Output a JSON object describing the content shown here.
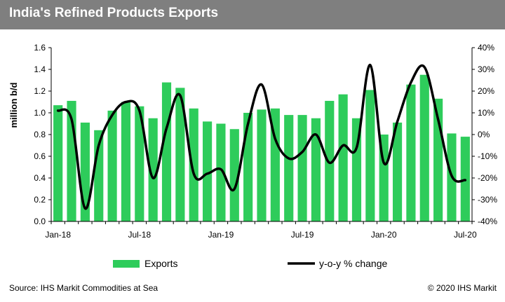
{
  "title": "India's Refined Products Exports",
  "source": "Source: IHS Markit Commodities at Sea",
  "copyright": "© 2020 IHS Markit",
  "colors": {
    "bar": "#2ecc5b",
    "line": "#000000",
    "header": "#7f7f7f"
  },
  "chart_data": {
    "type": "bar",
    "title": "India's Refined Products Exports",
    "ylabel": "million b/d",
    "y2label": "",
    "ylim": [
      0,
      1.6
    ],
    "y2lim": [
      -40,
      40
    ],
    "yticks": [
      "0.0",
      "0.2",
      "0.4",
      "0.6",
      "0.8",
      "1.0",
      "1.2",
      "1.4",
      "1.6"
    ],
    "y2ticks": [
      "-40%",
      "-30%",
      "-20%",
      "-10%",
      "0%",
      "10%",
      "20%",
      "30%",
      "40%"
    ],
    "x_tick_labels": [
      {
        "index": 0,
        "label": "Jan-18"
      },
      {
        "index": 6,
        "label": "Jul-18"
      },
      {
        "index": 12,
        "label": "Jan-19"
      },
      {
        "index": 18,
        "label": "Jul-19"
      },
      {
        "index": 24,
        "label": "Jan-20"
      },
      {
        "index": 30,
        "label": "Jul-20"
      }
    ],
    "categories": [
      "Jan-18",
      "Feb-18",
      "Mar-18",
      "Apr-18",
      "May-18",
      "Jun-18",
      "Jul-18",
      "Aug-18",
      "Sep-18",
      "Oct-18",
      "Nov-18",
      "Dec-18",
      "Jan-19",
      "Feb-19",
      "Mar-19",
      "Apr-19",
      "May-19",
      "Jun-19",
      "Jul-19",
      "Aug-19",
      "Sep-19",
      "Oct-19",
      "Nov-19",
      "Dec-19",
      "Jan-20",
      "Feb-20",
      "Mar-20",
      "Apr-20",
      "May-20",
      "Jun-20",
      "Jul-20"
    ],
    "series": [
      {
        "name": "Exports",
        "kind": "bar",
        "axis": "left",
        "values": [
          1.07,
          1.11,
          0.91,
          0.84,
          1.02,
          1.1,
          1.06,
          0.95,
          1.28,
          1.23,
          1.04,
          0.92,
          0.9,
          0.85,
          1.0,
          1.03,
          1.04,
          0.98,
          0.98,
          0.95,
          1.11,
          1.17,
          0.95,
          1.21,
          0.8,
          0.91,
          1.26,
          1.35,
          1.13,
          0.81,
          0.78
        ]
      },
      {
        "name": "y-o-y % change",
        "kind": "line",
        "axis": "right",
        "values": [
          11,
          7,
          -34,
          -5,
          9,
          15,
          11,
          -20,
          3,
          18,
          -18,
          -18,
          -16,
          -25,
          5,
          23,
          -2,
          -11,
          -8,
          0,
          -13,
          -5,
          -6,
          32,
          -13,
          6,
          24,
          31,
          7,
          -19,
          -21
        ]
      }
    ],
    "legend": [
      "Exports",
      "y-o-y % change"
    ],
    "legend_position": "bottom",
    "grid": false
  }
}
